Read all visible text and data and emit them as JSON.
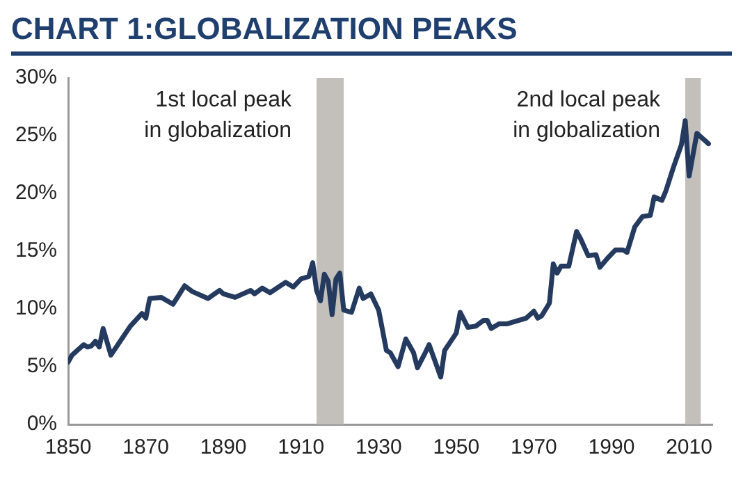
{
  "chart_data": {
    "type": "line",
    "title": "CHART 1:GLOBALIZATION PEAKS",
    "series": [
      {
        "color": "#243a5e",
        "x": [
          1850,
          1851,
          1853,
          1854,
          1855,
          1856,
          1857,
          1858,
          1859,
          1861,
          1863,
          1866,
          1869,
          1870,
          1871,
          1874,
          1877,
          1880,
          1882,
          1886,
          1889,
          1890,
          1893,
          1897,
          1898,
          1900,
          1902,
          1906,
          1908,
          1910,
          1912,
          1913,
          1914,
          1915,
          1916,
          1917,
          1918,
          1919,
          1920,
          1921,
          1923,
          1925,
          1926,
          1928,
          1930,
          1932,
          1933,
          1935,
          1937,
          1939,
          1940,
          1942,
          1943,
          1946,
          1947,
          1949,
          1950,
          1951,
          1953,
          1955,
          1957,
          1958,
          1959,
          1961,
          1963,
          1966,
          1968,
          1970,
          1971,
          1972,
          1974,
          1975,
          1976,
          1977,
          1979,
          1981,
          1982,
          1984,
          1986,
          1987,
          1989,
          1991,
          1993,
          1994,
          1996,
          1998,
          2000,
          2001,
          2003,
          2004,
          2006,
          2008,
          2009,
          2010,
          2012,
          2015
        ],
        "values": [
          5.4,
          6.0,
          6.6,
          6.9,
          6.7,
          6.8,
          7.2,
          6.7,
          8.3,
          6.0,
          7.0,
          8.5,
          9.6,
          9.2,
          10.9,
          11.0,
          10.4,
          12.0,
          11.5,
          10.9,
          11.6,
          11.3,
          11.0,
          11.6,
          11.3,
          11.8,
          11.4,
          12.3,
          11.9,
          12.6,
          12.8,
          14.0,
          11.6,
          10.7,
          13.0,
          12.4,
          9.5,
          12.6,
          13.1,
          9.9,
          9.7,
          11.8,
          10.9,
          11.3,
          9.9,
          6.4,
          6.2,
          5.0,
          7.4,
          6.2,
          4.9,
          6.2,
          6.9,
          4.1,
          6.4,
          7.4,
          7.9,
          9.7,
          8.4,
          8.5,
          9.0,
          9.0,
          8.3,
          8.7,
          8.7,
          9.0,
          9.2,
          9.8,
          9.2,
          9.4,
          10.5,
          13.9,
          13.1,
          13.7,
          13.7,
          16.7,
          16.1,
          14.6,
          14.7,
          13.6,
          14.4,
          15.1,
          15.1,
          14.9,
          17.1,
          18.0,
          18.1,
          19.7,
          19.4,
          20.2,
          22.3,
          24.2,
          26.3,
          21.5,
          25.2,
          24.3
        ]
      }
    ],
    "xlim": [
      1850,
      2016
    ],
    "xticks": [
      1850,
      1870,
      1890,
      1910,
      1930,
      1950,
      1970,
      1990,
      2010
    ],
    "ylim": [
      0,
      30
    ],
    "yticks": [
      {
        "value": 0,
        "label": "0%"
      },
      {
        "value": 5,
        "label": "5%"
      },
      {
        "value": 10,
        "label": "10%"
      },
      {
        "value": 15,
        "label": "15%"
      },
      {
        "value": 20,
        "label": "20%"
      },
      {
        "value": 25,
        "label": "25%"
      },
      {
        "value": 30,
        "label": "30%"
      }
    ],
    "bands": [
      {
        "axis": "x",
        "from": 1914,
        "to": 1921,
        "label": "1st local peak\nin globalization",
        "color": "#c3c0bb"
      },
      {
        "axis": "x",
        "from": 2009,
        "to": 2013,
        "label": "2nd local peak\nin globalization",
        "color": "#c3c0bb"
      }
    ],
    "grid": false,
    "legend": false,
    "marker": "none",
    "line_style": "solid"
  }
}
